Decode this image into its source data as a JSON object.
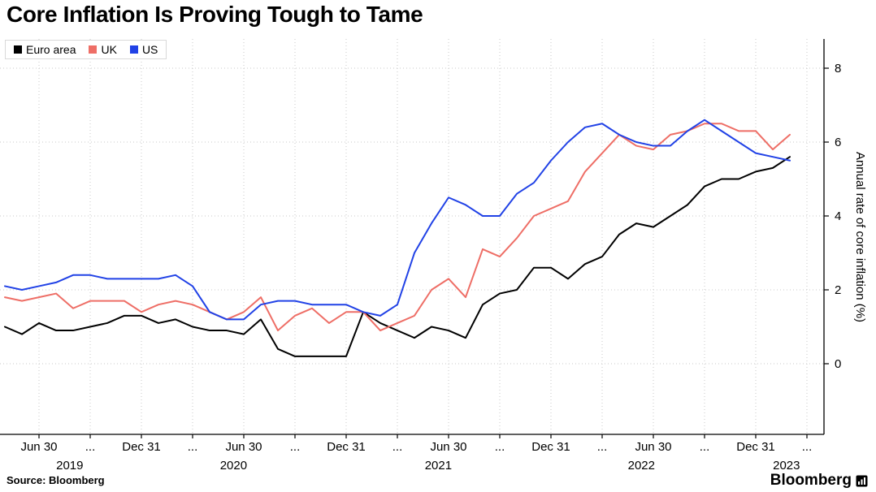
{
  "chart_data": {
    "type": "line",
    "title": "Core Inflation Is Proving Tough to Tame",
    "ylabel": "Annual rate of core inflation (%)",
    "x_unit": "month",
    "x_start": "2019-04",
    "x_end": "2023-02",
    "ylim": [
      -1.9,
      8.8
    ],
    "y_ticks": [
      0,
      2,
      4,
      6,
      8
    ],
    "grid": "dotted",
    "legend_position": "top-left",
    "x_ticks": [
      {
        "i": 2,
        "label": "Jun 30"
      },
      {
        "i": 5,
        "label": "..."
      },
      {
        "i": 8,
        "label": "Dec 31"
      },
      {
        "i": 11,
        "label": "..."
      },
      {
        "i": 14,
        "label": "Jun 30"
      },
      {
        "i": 17,
        "label": "..."
      },
      {
        "i": 20,
        "label": "Dec 31"
      },
      {
        "i": 23,
        "label": "..."
      },
      {
        "i": 26,
        "label": "Jun 30"
      },
      {
        "i": 29,
        "label": "..."
      },
      {
        "i": 32,
        "label": "Dec 31"
      },
      {
        "i": 35,
        "label": "..."
      },
      {
        "i": 38,
        "label": "Jun 30"
      },
      {
        "i": 41,
        "label": "..."
      },
      {
        "i": 44,
        "label": "Dec 31"
      },
      {
        "i": 47,
        "label": "..."
      }
    ],
    "year_labels": [
      {
        "i": 3.8,
        "label": "2019"
      },
      {
        "i": 13.4,
        "label": "2020"
      },
      {
        "i": 25.4,
        "label": "2021"
      },
      {
        "i": 37.3,
        "label": "2022"
      },
      {
        "i": 45.8,
        "label": "2023"
      }
    ],
    "series": [
      {
        "name": "Euro area",
        "color": "#000000",
        "values": [
          1.0,
          0.8,
          1.1,
          0.9,
          0.9,
          1.0,
          1.1,
          1.3,
          1.3,
          1.1,
          1.2,
          1.0,
          0.9,
          0.9,
          0.8,
          1.2,
          0.4,
          0.2,
          0.2,
          0.2,
          0.2,
          1.4,
          1.1,
          0.9,
          0.7,
          1.0,
          0.9,
          0.7,
          1.6,
          1.9,
          2.0,
          2.6,
          2.6,
          2.3,
          2.7,
          2.9,
          3.5,
          3.8,
          3.7,
          4.0,
          4.3,
          4.8,
          5.0,
          5.0,
          5.2,
          5.3,
          5.6
        ]
      },
      {
        "name": "UK",
        "color": "#ee6e66",
        "values": [
          1.8,
          1.7,
          1.8,
          1.9,
          1.5,
          1.7,
          1.7,
          1.7,
          1.4,
          1.6,
          1.7,
          1.6,
          1.4,
          1.2,
          1.4,
          1.8,
          0.9,
          1.3,
          1.5,
          1.1,
          1.4,
          1.4,
          0.9,
          1.1,
          1.3,
          2.0,
          2.3,
          1.8,
          3.1,
          2.9,
          3.4,
          4.0,
          4.2,
          4.4,
          5.2,
          5.7,
          6.2,
          5.9,
          5.8,
          6.2,
          6.3,
          6.5,
          6.5,
          6.3,
          6.3,
          5.8,
          6.2
        ]
      },
      {
        "name": "US",
        "color": "#2142e6",
        "values": [
          2.1,
          2.0,
          2.1,
          2.2,
          2.4,
          2.4,
          2.3,
          2.3,
          2.3,
          2.3,
          2.4,
          2.1,
          1.4,
          1.2,
          1.2,
          1.6,
          1.7,
          1.7,
          1.6,
          1.6,
          1.6,
          1.4,
          1.3,
          1.6,
          3.0,
          3.8,
          4.5,
          4.3,
          4.0,
          4.0,
          4.6,
          4.9,
          5.5,
          6.0,
          6.4,
          6.5,
          6.2,
          6.0,
          5.9,
          5.9,
          6.3,
          6.6,
          6.3,
          6.0,
          5.7,
          5.6,
          5.5
        ]
      }
    ]
  },
  "footer": {
    "source": "Source: Bloomberg",
    "brand": "Bloomberg"
  }
}
